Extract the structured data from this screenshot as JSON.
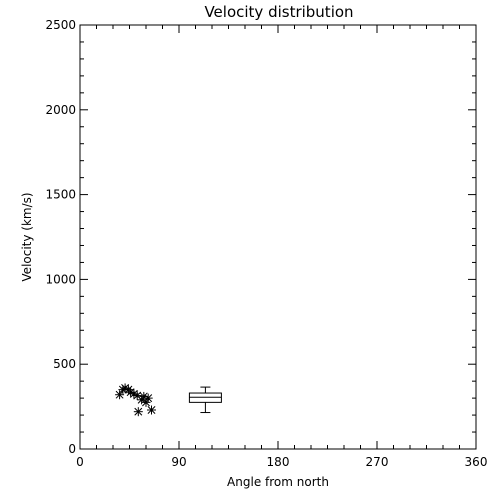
{
  "chart_data": {
    "type": "scatter",
    "title": "Velocity distribution",
    "xlabel": "Angle from north",
    "ylabel": "Velocity (km/s)",
    "xlim": [
      0,
      360
    ],
    "ylim": [
      0,
      2500
    ],
    "xticks": [
      0,
      90,
      180,
      270,
      360
    ],
    "yticks": [
      0,
      500,
      1000,
      1500,
      2000,
      2500
    ],
    "grid": false,
    "marker": "asterisk",
    "points": [
      {
        "x": 36,
        "y": 320
      },
      {
        "x": 39,
        "y": 350
      },
      {
        "x": 41,
        "y": 360
      },
      {
        "x": 44,
        "y": 350
      },
      {
        "x": 46,
        "y": 335
      },
      {
        "x": 49,
        "y": 325
      },
      {
        "x": 52,
        "y": 315
      },
      {
        "x": 53,
        "y": 220
      },
      {
        "x": 56,
        "y": 290
      },
      {
        "x": 58,
        "y": 310
      },
      {
        "x": 60,
        "y": 275
      },
      {
        "x": 62,
        "y": 300
      },
      {
        "x": 65,
        "y": 230
      }
    ],
    "boxplot": {
      "x": 114,
      "min": 215,
      "q1": 275,
      "median": 305,
      "q3": 330,
      "max": 365
    }
  }
}
